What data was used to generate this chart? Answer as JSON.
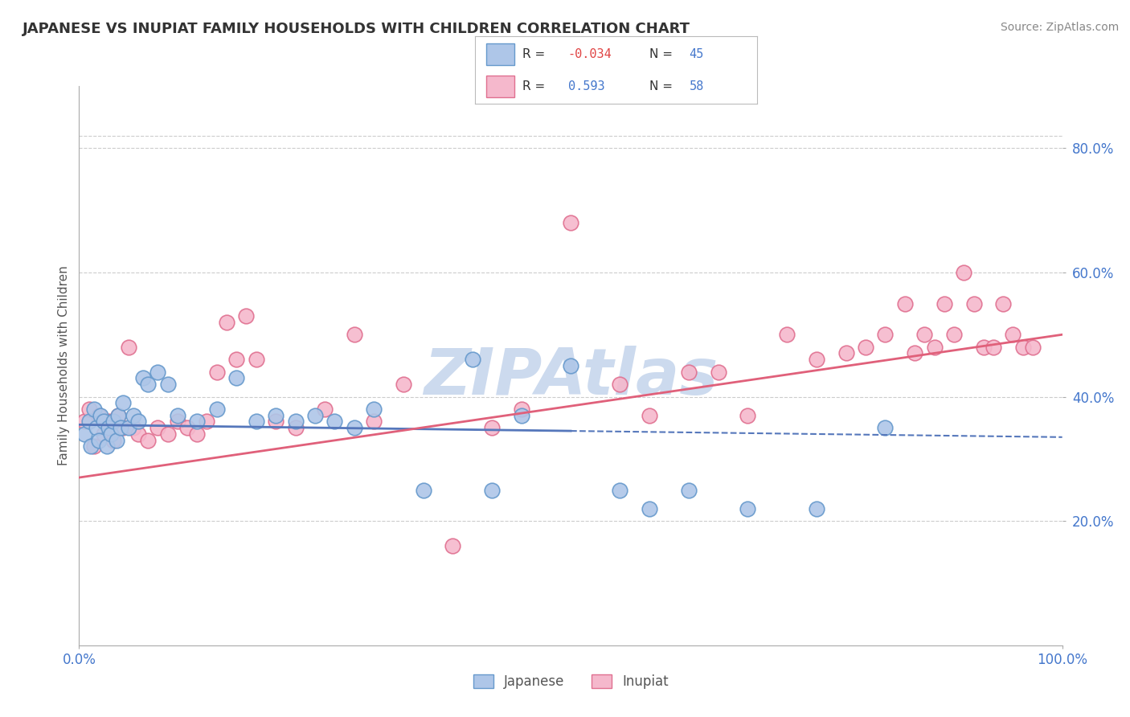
{
  "title": "JAPANESE VS INUPIAT FAMILY HOUSEHOLDS WITH CHILDREN CORRELATION CHART",
  "source": "Source: ZipAtlas.com",
  "ylabel": "Family Households with Children",
  "xmin": 0.0,
  "xmax": 100.0,
  "ymin": 0.0,
  "ymax": 90.0,
  "ytick_values": [
    20.0,
    40.0,
    60.0,
    80.0
  ],
  "xtick_values": [
    0.0,
    100.0
  ],
  "legend_r_japanese": "-0.034",
  "legend_n_japanese": "45",
  "legend_r_inupiat": "0.593",
  "legend_n_inupiat": "58",
  "legend_label_japanese": "Japanese",
  "legend_label_inupiat": "Inupiat",
  "japanese_color": "#aec6e8",
  "inupiat_color": "#f5b8cc",
  "japanese_edge_color": "#6699cc",
  "inupiat_edge_color": "#e07090",
  "japanese_line_color": "#5577bb",
  "inupiat_line_color": "#e0607a",
  "watermark": "ZIPAtlas",
  "watermark_color": "#ccdaee",
  "background_color": "#ffffff",
  "grid_color": "#cccccc",
  "japanese_x": [
    0.5,
    1.0,
    1.2,
    1.5,
    1.8,
    2.0,
    2.2,
    2.5,
    2.8,
    3.0,
    3.2,
    3.5,
    3.8,
    4.0,
    4.2,
    4.5,
    5.0,
    5.5,
    6.0,
    6.5,
    7.0,
    8.0,
    9.0,
    10.0,
    12.0,
    14.0,
    16.0,
    18.0,
    20.0,
    22.0,
    24.0,
    26.0,
    28.0,
    30.0,
    35.0,
    40.0,
    42.0,
    45.0,
    50.0,
    55.0,
    58.0,
    62.0,
    68.0,
    75.0,
    82.0
  ],
  "japanese_y": [
    34.0,
    36.0,
    32.0,
    38.0,
    35.0,
    33.0,
    37.0,
    36.0,
    32.0,
    35.0,
    34.0,
    36.0,
    33.0,
    37.0,
    35.0,
    39.0,
    35.0,
    37.0,
    36.0,
    43.0,
    42.0,
    44.0,
    42.0,
    37.0,
    36.0,
    38.0,
    43.0,
    36.0,
    37.0,
    36.0,
    37.0,
    36.0,
    35.0,
    38.0,
    25.0,
    46.0,
    25.0,
    37.0,
    45.0,
    25.0,
    22.0,
    25.0,
    22.0,
    22.0,
    35.0
  ],
  "inupiat_x": [
    0.5,
    1.0,
    1.5,
    2.0,
    2.5,
    3.0,
    3.5,
    4.0,
    4.5,
    5.0,
    5.5,
    6.0,
    7.0,
    8.0,
    9.0,
    10.0,
    11.0,
    12.0,
    13.0,
    14.0,
    15.0,
    16.0,
    17.0,
    18.0,
    20.0,
    22.0,
    25.0,
    28.0,
    30.0,
    33.0,
    38.0,
    42.0,
    45.0,
    50.0,
    55.0,
    58.0,
    62.0,
    65.0,
    68.0,
    72.0,
    75.0,
    78.0,
    80.0,
    82.0,
    84.0,
    85.0,
    86.0,
    87.0,
    88.0,
    89.0,
    90.0,
    91.0,
    92.0,
    93.0,
    94.0,
    95.0,
    96.0,
    97.0
  ],
  "inupiat_y": [
    36.0,
    38.0,
    32.0,
    37.0,
    34.0,
    36.0,
    33.0,
    37.0,
    35.0,
    48.0,
    35.0,
    34.0,
    33.0,
    35.0,
    34.0,
    36.0,
    35.0,
    34.0,
    36.0,
    44.0,
    52.0,
    46.0,
    53.0,
    46.0,
    36.0,
    35.0,
    38.0,
    50.0,
    36.0,
    42.0,
    16.0,
    35.0,
    38.0,
    68.0,
    42.0,
    37.0,
    44.0,
    44.0,
    37.0,
    50.0,
    46.0,
    47.0,
    48.0,
    50.0,
    55.0,
    47.0,
    50.0,
    48.0,
    55.0,
    50.0,
    60.0,
    55.0,
    48.0,
    48.0,
    55.0,
    50.0,
    48.0,
    48.0
  ]
}
